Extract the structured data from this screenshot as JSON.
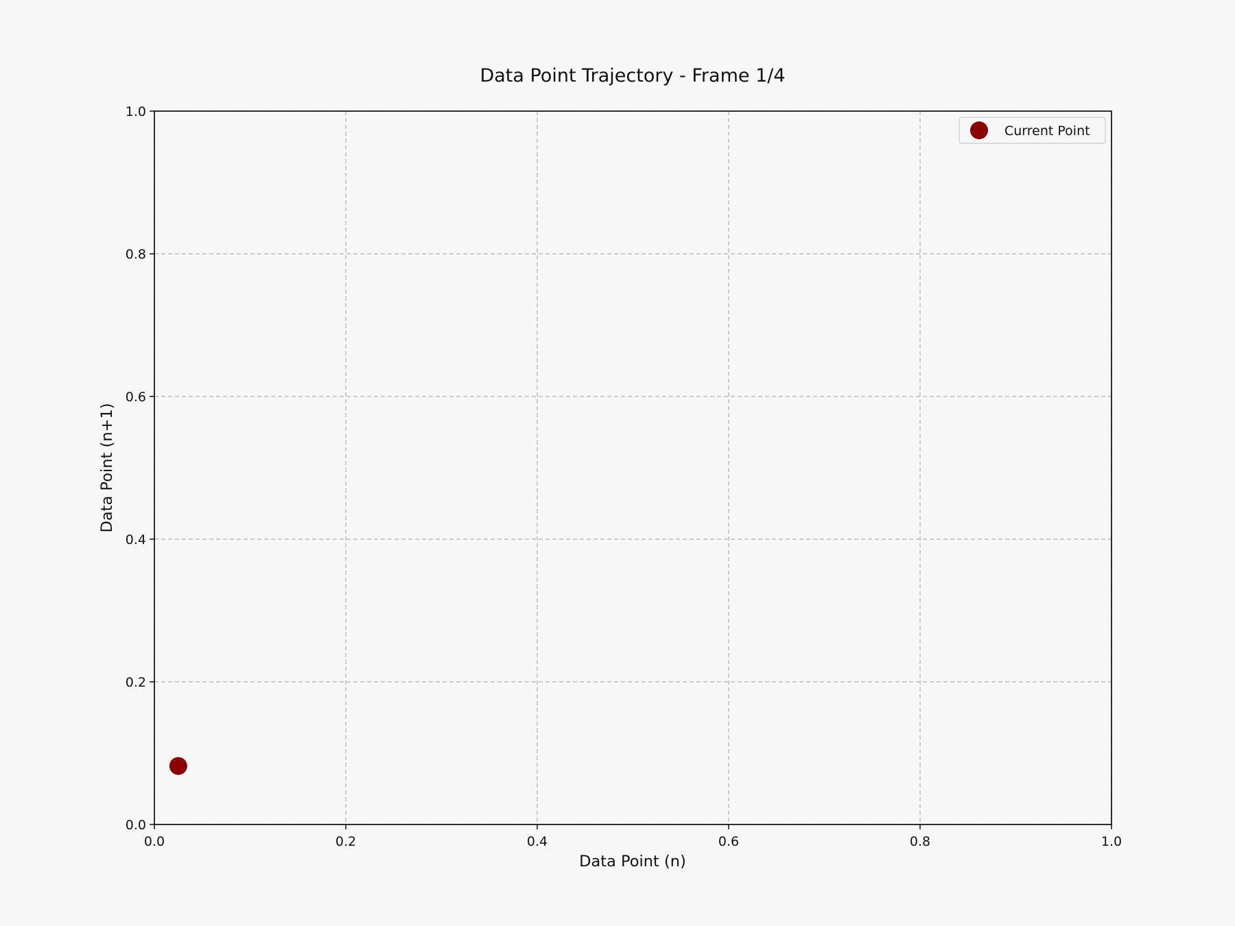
{
  "chart_data": {
    "type": "scatter",
    "title": "Data Point Trajectory - Frame 1/4",
    "xlabel": "Data Point (n)",
    "ylabel": "Data Point (n+1)",
    "xlim": [
      0.0,
      1.0
    ],
    "ylim": [
      0.0,
      1.0
    ],
    "xticks": [
      "0.0",
      "0.2",
      "0.4",
      "0.6",
      "0.8",
      "1.0"
    ],
    "yticks": [
      "0.0",
      "0.2",
      "0.4",
      "0.6",
      "0.8",
      "1.0"
    ],
    "grid": true,
    "legend_position": "top-right",
    "series": [
      {
        "name": "Current Point",
        "color": "#8b0000",
        "x": [
          0.025
        ],
        "y": [
          0.082
        ]
      }
    ]
  }
}
